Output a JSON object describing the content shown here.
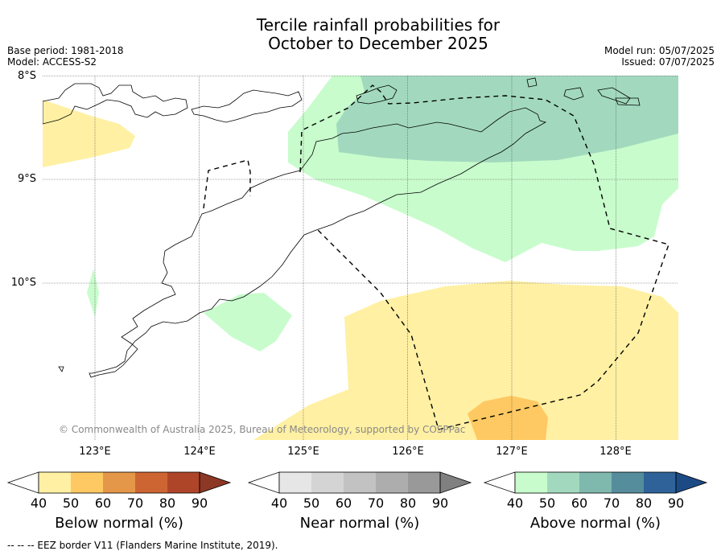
{
  "title_line1": "Tercile rainfall probabilities for",
  "title_line2": "October to December 2025",
  "base_period": "Base period: 1981-2018",
  "model": "Model: ACCESS-S2",
  "model_run": "Model run: 05/07/2025",
  "issued": "Issued: 07/07/2025",
  "lat_labels": [
    "8°S",
    "9°S",
    "10°S"
  ],
  "lon_labels": [
    "123°E",
    "124°E",
    "125°E",
    "126°E",
    "127°E",
    "128°E"
  ],
  "copyright": "© Commonwealth of Australia 2025, Bureau of Meteorology, supported by COSPPac",
  "colorbars": [
    {
      "label": "Below normal (%)",
      "ticks": [
        "40",
        "50",
        "60",
        "70",
        "80",
        "90"
      ],
      "colors": [
        "#fff0a3",
        "#fec962",
        "#e49748",
        "#cd6533",
        "#ae4529"
      ],
      "arrow_right": "#8d3725"
    },
    {
      "label": "Near normal (%)",
      "ticks": [
        "40",
        "50",
        "60",
        "70",
        "80",
        "90"
      ],
      "colors": [
        "#e6e6e6",
        "#d4d4d4",
        "#c2c2c2",
        "#adadad",
        "#999999"
      ],
      "arrow_right": "#808080"
    },
    {
      "label": "Above normal (%)",
      "ticks": [
        "40",
        "50",
        "60",
        "70",
        "80",
        "90"
      ],
      "colors": [
        "#c8fccc",
        "#a2d9be",
        "#7fb8ad",
        "#568d9c",
        "#2e6299"
      ],
      "arrow_right": "#1c4a85"
    }
  ],
  "footer": "--  --  -- EEZ border V11 (Flanders Marine Institute, 2019).",
  "colors": {
    "below_40": "#fff0a3",
    "below_50": "#fec962",
    "above_40": "#c8fccc",
    "above_50": "#a2d9be"
  }
}
